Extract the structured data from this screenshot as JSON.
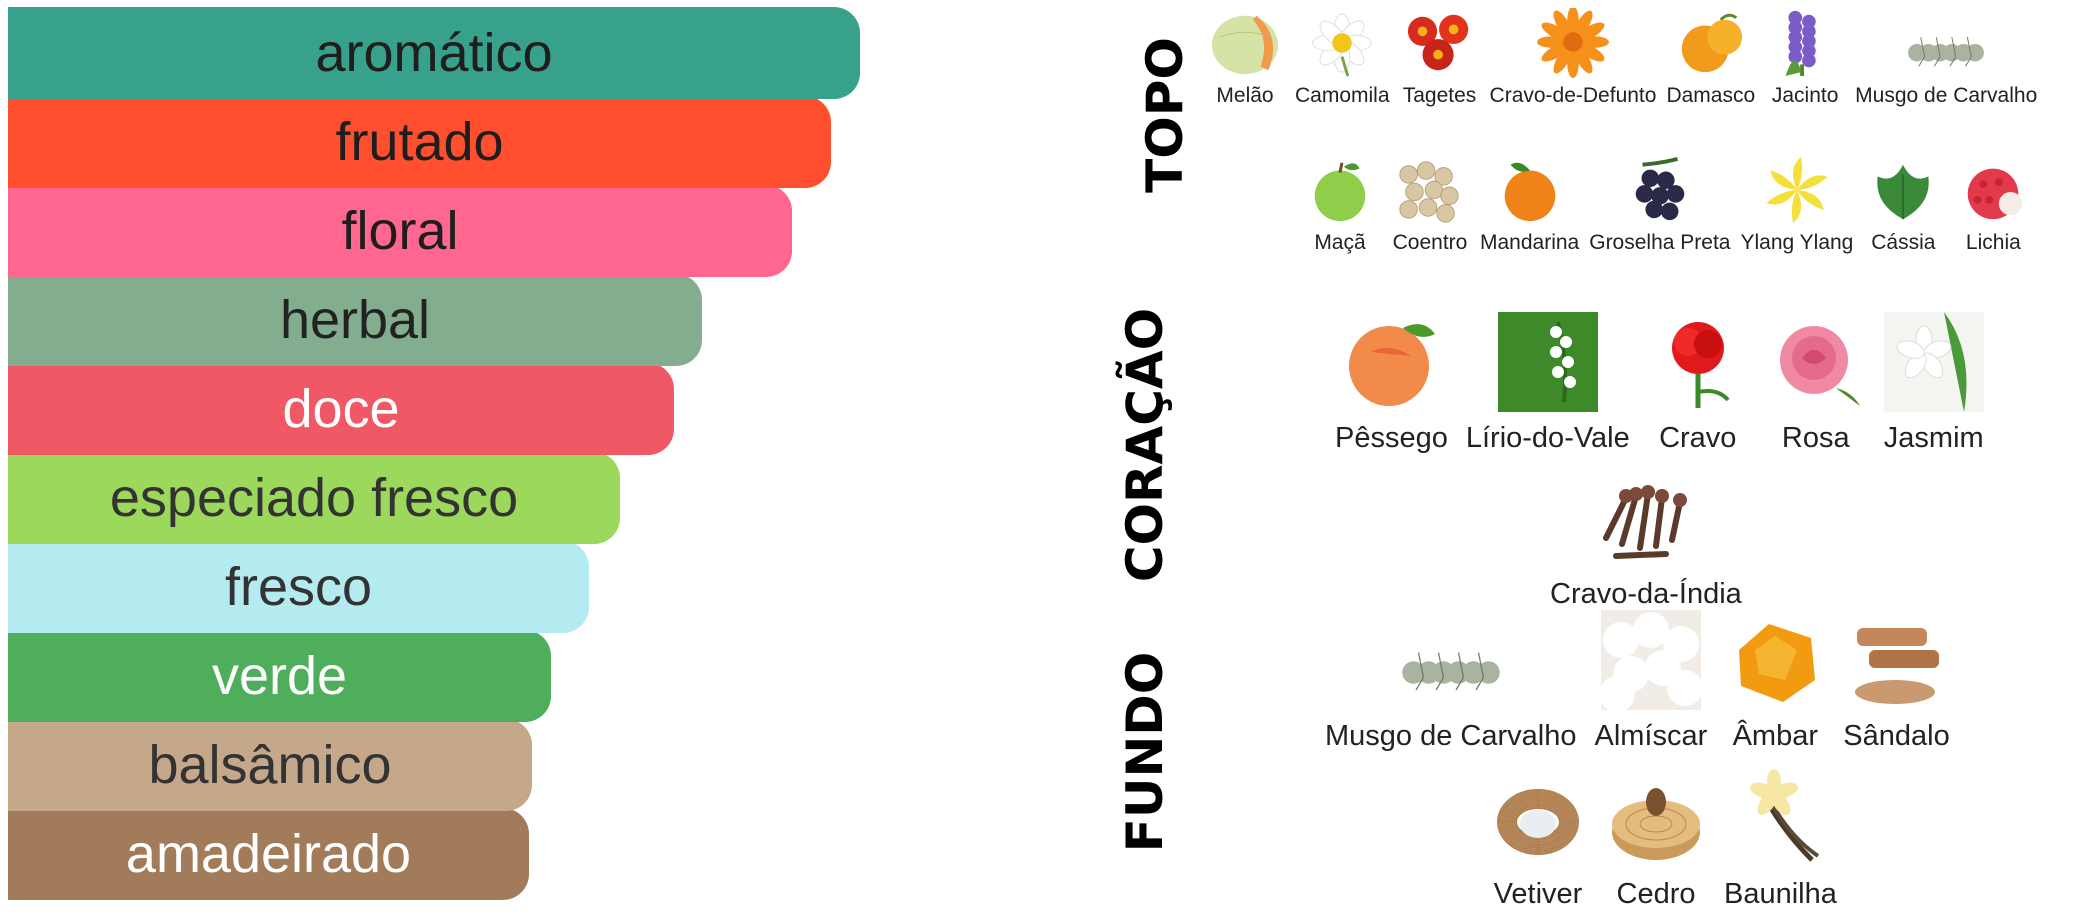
{
  "accords": [
    {
      "label": "aromático",
      "color": "#37a18c",
      "text_color": "#1e1e1e",
      "strength": 0.852
    },
    {
      "label": "frutado",
      "color": "#ff4f2e",
      "text_color": "#1e1e1e",
      "strength": 0.823
    },
    {
      "label": "floral",
      "color": "#ff6791",
      "text_color": "#1e1e1e",
      "strength": 0.784
    },
    {
      "label": "herbal",
      "color": "#83ad8f",
      "text_color": "#222222",
      "strength": 0.694
    },
    {
      "label": "doce",
      "color": "#ef5864",
      "text_color": "#ffffff",
      "strength": 0.666
    },
    {
      "label": "especiado fresco",
      "color": "#9bd85b",
      "text_color": "#333333",
      "strength": 0.612
    },
    {
      "label": "fresco",
      "color": "#b3ebf0",
      "text_color": "#333333",
      "strength": 0.581
    },
    {
      "label": "verde",
      "color": "#4fae5b",
      "text_color": "#ffffff",
      "strength": 0.543
    },
    {
      "label": "balsâmico",
      "color": "#c5a78a",
      "text_color": "#333333",
      "strength": 0.524
    },
    {
      "label": "amadeirado",
      "color": "#a27c5a",
      "text_color": "#ffffff",
      "strength": 0.521
    }
  ],
  "pyramid": {
    "top": {
      "label": "TOPO",
      "rows": [
        [
          "Melão",
          "Camomila",
          "Tagetes",
          "Cravo-de-Defunto",
          "Damasco",
          "Jacinto",
          "Musgo de Carvalho"
        ],
        [
          "Maçã",
          "Coentro",
          "Mandarina",
          "Groselha Preta",
          "Ylang Ylang",
          "Cássia",
          "Lichia"
        ]
      ],
      "icons": [
        [
          "melon-icon",
          "chamomile-icon",
          "tagetes-icon",
          "calendula-icon",
          "apricot-icon",
          "hyacinth-icon",
          "oakmoss-icon"
        ],
        [
          "apple-icon",
          "coriander-icon",
          "mandarin-icon",
          "blackcurrant-icon",
          "ylang-ylang-icon",
          "cassis-leaf-icon",
          "lychee-icon"
        ]
      ]
    },
    "heart": {
      "label": "CORAÇÃO",
      "rows": [
        [
          "Pêssego",
          "Lírio-do-Vale",
          "Cravo",
          "Rosa",
          "Jasmim"
        ],
        [
          "Cravo-da-Índia"
        ]
      ],
      "icons": [
        [
          "peach-icon",
          "lily-of-the-valley-icon",
          "carnation-icon",
          "rose-icon",
          "jasmine-icon"
        ],
        [
          "clove-icon"
        ]
      ]
    },
    "base": {
      "label": "FUNDO",
      "rows": [
        [
          "Musgo de Carvalho",
          "Almíscar",
          "Âmbar",
          "Sândalo"
        ],
        [
          "Vetiver",
          "Cedro",
          "Baunilha"
        ]
      ],
      "icons": [
        [
          "oakmoss-icon",
          "musk-icon",
          "amber-icon",
          "sandalwood-icon"
        ],
        [
          "vetiver-icon",
          "cedar-icon",
          "vanilla-icon"
        ]
      ]
    }
  }
}
